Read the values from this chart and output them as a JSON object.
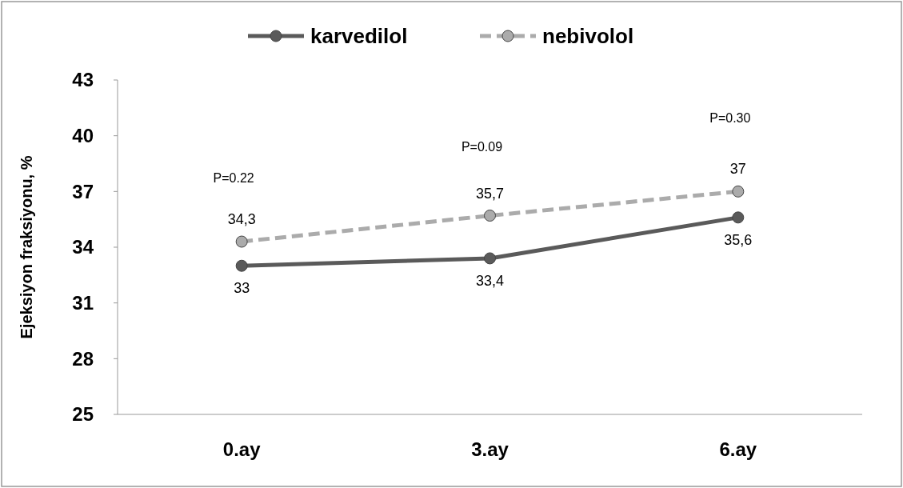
{
  "chart_data": {
    "type": "line",
    "ylabel": "Ejeksiyon fraksiyonu, %",
    "categories": [
      "0.ay",
      "3.ay",
      "6.ay"
    ],
    "series": [
      {
        "name": "karvedilol",
        "color": "#5a5a5a",
        "line_style": "solid",
        "values": [
          33,
          33.4,
          35.6
        ],
        "value_labels": [
          "33",
          "33,4",
          "35,6"
        ]
      },
      {
        "name": "nebivolol",
        "color": "#ababab",
        "line_style": "dashed",
        "values": [
          34.3,
          35.7,
          37
        ],
        "value_labels": [
          "34,3",
          "35,7",
          "37"
        ]
      }
    ],
    "ylim": [
      25,
      43
    ],
    "yticks": [
      25,
      28,
      31,
      34,
      37,
      40,
      43
    ],
    "marker": "circle",
    "legend": "top",
    "grid": false,
    "annotations": [
      "P=0.22",
      "P=0.09",
      "P=0.30"
    ]
  }
}
